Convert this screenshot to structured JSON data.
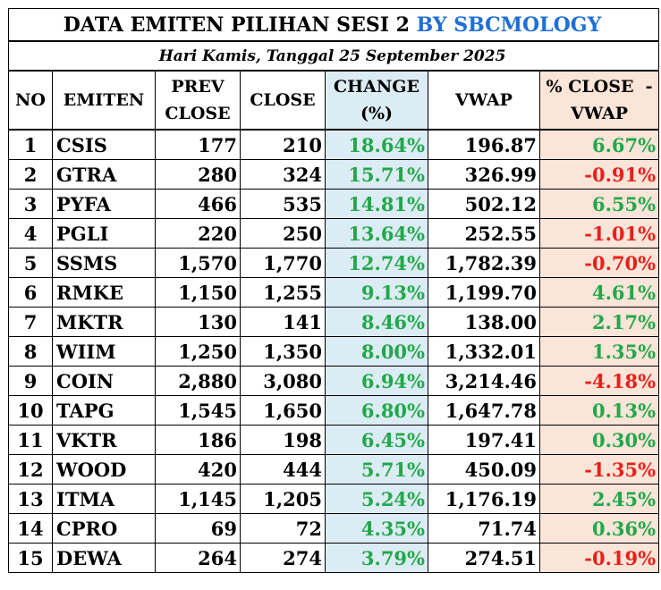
{
  "title": {
    "main": "DATA EMITEN PILIHAN SESI 2",
    "by": "BY SBCMOLOGY"
  },
  "subtitle": "Hari Kamis, Tanggal 25 September 2025",
  "headers": {
    "no": "NO",
    "emiten": "EMITEN",
    "prev_close_1": "PREV",
    "prev_close_2": "CLOSE",
    "close": "CLOSE",
    "change_1": "CHANGE",
    "change_2": "(%)",
    "vwap": "VWAP",
    "pct_1": "% CLOSE  -",
    "pct_2": "VWAP"
  },
  "colors": {
    "positive": "#22a84a",
    "negative": "#e8201a",
    "brand": "#1f6fd6",
    "change_bg": "#dcecf4",
    "pct_bg": "#fbe4d8"
  },
  "rows": [
    {
      "no": "1",
      "emiten": "CSIS",
      "prev": "177",
      "close": "210",
      "change": "18.64%",
      "vwap": "196.87",
      "pct": "6.67%",
      "sign": "pos"
    },
    {
      "no": "2",
      "emiten": "GTRA",
      "prev": "280",
      "close": "324",
      "change": "15.71%",
      "vwap": "326.99",
      "pct": "-0.91%",
      "sign": "neg"
    },
    {
      "no": "3",
      "emiten": "PYFA",
      "prev": "466",
      "close": "535",
      "change": "14.81%",
      "vwap": "502.12",
      "pct": "6.55%",
      "sign": "pos"
    },
    {
      "no": "4",
      "emiten": "PGLI",
      "prev": "220",
      "close": "250",
      "change": "13.64%",
      "vwap": "252.55",
      "pct": "-1.01%",
      "sign": "neg"
    },
    {
      "no": "5",
      "emiten": "SSMS",
      "prev": "1,570",
      "close": "1,770",
      "change": "12.74%",
      "vwap": "1,782.39",
      "pct": "-0.70%",
      "sign": "neg"
    },
    {
      "no": "6",
      "emiten": "RMKE",
      "prev": "1,150",
      "close": "1,255",
      "change": "9.13%",
      "vwap": "1,199.70",
      "pct": "4.61%",
      "sign": "pos"
    },
    {
      "no": "7",
      "emiten": "MKTR",
      "prev": "130",
      "close": "141",
      "change": "8.46%",
      "vwap": "138.00",
      "pct": "2.17%",
      "sign": "pos"
    },
    {
      "no": "8",
      "emiten": "WIIM",
      "prev": "1,250",
      "close": "1,350",
      "change": "8.00%",
      "vwap": "1,332.01",
      "pct": "1.35%",
      "sign": "pos"
    },
    {
      "no": "9",
      "emiten": "COIN",
      "prev": "2,880",
      "close": "3,080",
      "change": "6.94%",
      "vwap": "3,214.46",
      "pct": "-4.18%",
      "sign": "neg"
    },
    {
      "no": "10",
      "emiten": "TAPG",
      "prev": "1,545",
      "close": "1,650",
      "change": "6.80%",
      "vwap": "1,647.78",
      "pct": "0.13%",
      "sign": "pos"
    },
    {
      "no": "11",
      "emiten": "VKTR",
      "prev": "186",
      "close": "198",
      "change": "6.45%",
      "vwap": "197.41",
      "pct": "0.30%",
      "sign": "pos"
    },
    {
      "no": "12",
      "emiten": "WOOD",
      "prev": "420",
      "close": "444",
      "change": "5.71%",
      "vwap": "450.09",
      "pct": "-1.35%",
      "sign": "neg"
    },
    {
      "no": "13",
      "emiten": "ITMA",
      "prev": "1,145",
      "close": "1,205",
      "change": "5.24%",
      "vwap": "1,176.19",
      "pct": "2.45%",
      "sign": "pos"
    },
    {
      "no": "14",
      "emiten": "CPRO",
      "prev": "69",
      "close": "72",
      "change": "4.35%",
      "vwap": "71.74",
      "pct": "0.36%",
      "sign": "pos"
    },
    {
      "no": "15",
      "emiten": "DEWA",
      "prev": "264",
      "close": "274",
      "change": "3.79%",
      "vwap": "274.51",
      "pct": "-0.19%",
      "sign": "neg"
    }
  ]
}
